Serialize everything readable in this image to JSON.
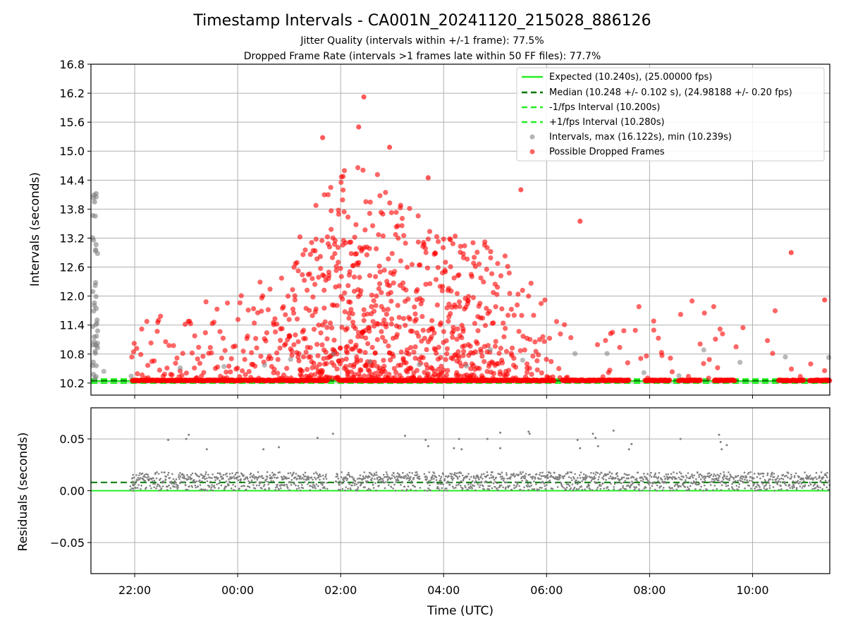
{
  "chart_data": [
    {
      "type": "scatter",
      "title": "Timestamp Intervals - CA001N_20241120_215028_886126",
      "subtitle_lines": [
        "Jitter Quality (intervals within +/-1 frame): 77.5%",
        "Dropped Frame Rate (intervals >1 frames late within 50 FF files): 77.7%"
      ],
      "ylabel": "Intervals (seconds)",
      "xlabel": "",
      "x_range_hours": [
        -2.85,
        11.5
      ],
      "ylim": [
        9.95,
        16.8
      ],
      "y_ticks": [
        10.2,
        10.8,
        11.4,
        12.0,
        12.6,
        13.2,
        13.8,
        14.4,
        15.0,
        15.6,
        16.2,
        16.8
      ],
      "y_tick_labels": [
        "10.2",
        "10.8",
        "11.4",
        "12.0",
        "12.6",
        "13.2",
        "13.8",
        "14.4",
        "15.0",
        "15.6",
        "16.2",
        "16.8"
      ],
      "grid": true,
      "legend_position": "top-right",
      "lines": [
        {
          "name": "Expected (10.240s), (25.00000 fps)",
          "value": 10.24,
          "color": "#22ee22",
          "dash": "solid"
        },
        {
          "name": "Median (10.248 +/- 0.102 s), (24.98188 +/- 0.20 fps)",
          "value": 10.248,
          "color": "#007700",
          "dash": "dashed"
        },
        {
          "name": "-1/fps Interval (10.200s)",
          "value": 10.2,
          "color": "#22ee22",
          "dash": "dashed"
        },
        {
          "name": "+1/fps Interval (10.280s)",
          "value": 10.28,
          "color": "#22ee22",
          "dash": "dashed"
        }
      ],
      "series": [
        {
          "name": "Intervals, max (16.122s), min (10.239s)",
          "color": "#808080",
          "max": 16.122,
          "min": 10.239
        },
        {
          "name": "Possible Dropped Frames",
          "color": "#ff0000"
        }
      ],
      "highlight_points": [
        {
          "x": 2.45,
          "y": 16.122,
          "series": 1
        },
        {
          "x": 1.65,
          "y": 15.28,
          "series": 1
        },
        {
          "x": 2.35,
          "y": 15.5,
          "series": 1
        },
        {
          "x": 2.95,
          "y": 15.08,
          "series": 1
        },
        {
          "x": 3.7,
          "y": 14.45,
          "series": 1
        },
        {
          "x": 5.5,
          "y": 14.2,
          "series": 1
        },
        {
          "x": 6.65,
          "y": 13.55,
          "series": 1
        },
        {
          "x": 10.75,
          "y": 12.9,
          "series": 1
        },
        {
          "x": -2.75,
          "y": 14.12,
          "series": 0
        },
        {
          "x": -2.78,
          "y": 13.95,
          "series": 0
        },
        {
          "x": 11.4,
          "y": 11.92,
          "series": 1
        }
      ]
    },
    {
      "type": "scatter",
      "ylabel": "Residuals (seconds)",
      "xlabel": "Time (UTC)",
      "x_range_hours": [
        -2.85,
        11.5
      ],
      "ylim": [
        -0.08,
        0.08
      ],
      "y_ticks": [
        -0.05,
        0.0,
        0.05
      ],
      "y_tick_labels": [
        "−0.05",
        "0.00",
        "0.05"
      ],
      "x_ticks": [
        -2,
        0,
        2,
        4,
        6,
        8,
        10
      ],
      "x_tick_labels": [
        "22:00",
        "00:00",
        "02:00",
        "04:00",
        "06:00",
        "08:00",
        "10:00"
      ],
      "grid": true,
      "lines": [
        {
          "value": 0.0,
          "color": "#22ee22",
          "dash": "solid"
        },
        {
          "value": 0.008,
          "color": "#007700",
          "dash": "dashed"
        }
      ],
      "series": [
        {
          "name": "residuals",
          "color": "#808080",
          "typical_range": [
            0.0,
            0.018
          ]
        }
      ],
      "outliers": [
        {
          "x": -1.35,
          "y": 0.049
        },
        {
          "x": -1.0,
          "y": 0.05
        },
        {
          "x": -0.95,
          "y": 0.054
        },
        {
          "x": -0.6,
          "y": 0.04
        },
        {
          "x": 0.5,
          "y": 0.04
        },
        {
          "x": 0.8,
          "y": 0.042
        },
        {
          "x": 1.55,
          "y": 0.051
        },
        {
          "x": 1.85,
          "y": 0.055
        },
        {
          "x": 3.25,
          "y": 0.053
        },
        {
          "x": 3.65,
          "y": 0.049
        },
        {
          "x": 3.7,
          "y": 0.043
        },
        {
          "x": 4.2,
          "y": 0.041
        },
        {
          "x": 4.3,
          "y": 0.05
        },
        {
          "x": 4.35,
          "y": 0.04
        },
        {
          "x": 4.85,
          "y": 0.05
        },
        {
          "x": 5.1,
          "y": 0.056
        },
        {
          "x": 5.1,
          "y": 0.041
        },
        {
          "x": 5.65,
          "y": 0.057
        },
        {
          "x": 5.67,
          "y": 0.055
        },
        {
          "x": 6.6,
          "y": 0.049
        },
        {
          "x": 6.65,
          "y": 0.041
        },
        {
          "x": 6.9,
          "y": 0.055
        },
        {
          "x": 6.95,
          "y": 0.051
        },
        {
          "x": 7.0,
          "y": 0.043
        },
        {
          "x": 7.3,
          "y": 0.058
        },
        {
          "x": 7.6,
          "y": 0.04
        },
        {
          "x": 7.65,
          "y": 0.045
        },
        {
          "x": 8.6,
          "y": 0.05
        },
        {
          "x": 9.35,
          "y": 0.054
        },
        {
          "x": 9.4,
          "y": 0.04
        },
        {
          "x": 9.38,
          "y": 0.047
        },
        {
          "x": 9.5,
          "y": 0.044
        }
      ]
    }
  ]
}
